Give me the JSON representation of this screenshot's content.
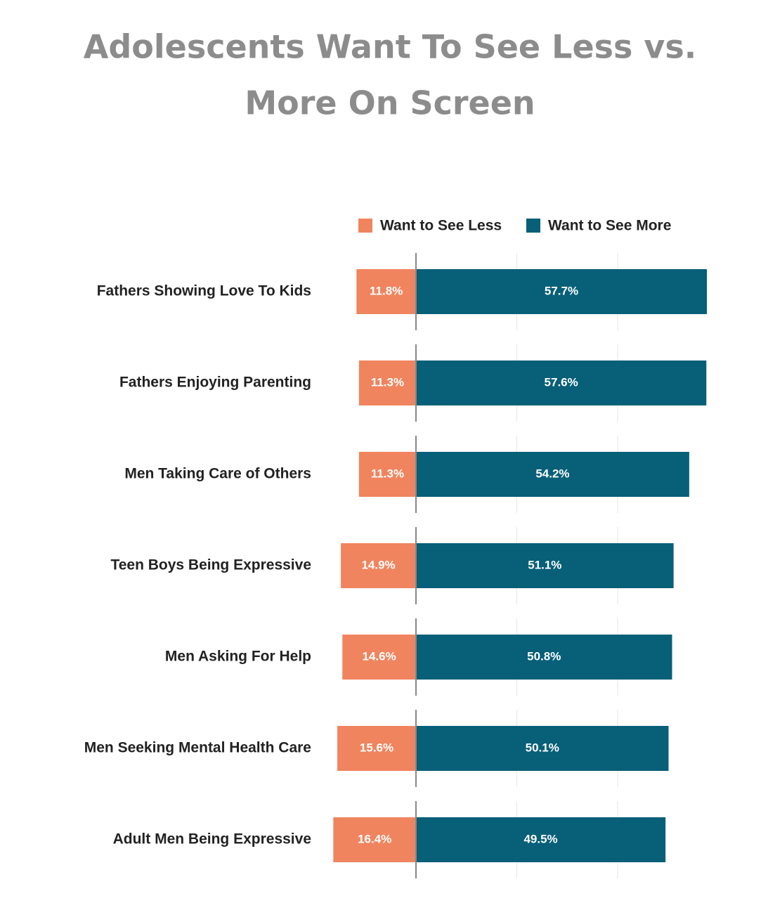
{
  "chart_data": {
    "type": "diverging-bar",
    "title": [
      "Adolescents Want To See Less vs.",
      "More On Screen"
    ],
    "categories": [
      "Fathers Showing Love To Kids",
      "Fathers Enjoying Parenting",
      "Men Taking Care of Others",
      "Teen Boys Being Expressive",
      "Men Asking For Help",
      "Men Seeking Mental Health Care",
      "Adult Men Being Expressive"
    ],
    "series": [
      {
        "name": "Want to See Less",
        "color": "#f0845e",
        "values": [
          11.8,
          11.3,
          11.3,
          14.9,
          14.6,
          15.6,
          16.4
        ],
        "value_labels": [
          "11.8%",
          "11.3%",
          "11.3%",
          "14.9%",
          "14.6%",
          "15.6%",
          "16.4%"
        ]
      },
      {
        "name": "Want to See More",
        "color": "#075f78",
        "values": [
          57.7,
          57.6,
          54.2,
          51.1,
          50.8,
          50.1,
          49.5
        ],
        "value_labels": [
          "57.7%",
          "57.6%",
          "54.2%",
          "51.1%",
          "50.8%",
          "50.1%",
          "49.5%"
        ]
      }
    ],
    "xlim": [
      -20,
      60
    ],
    "gridlines": [
      0,
      20,
      40
    ]
  }
}
